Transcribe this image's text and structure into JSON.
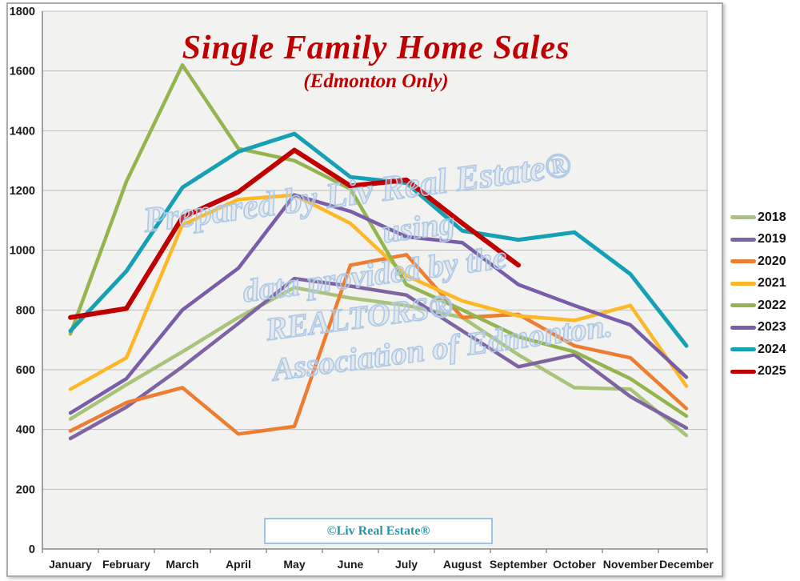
{
  "title": "Single Family Home Sales",
  "subtitle": "(Edmonton Only)",
  "title_color": "#C00000",
  "watermark_lines": [
    "Prepared by Liv Real Estate®",
    "using",
    "data provided by the",
    "REALTORS®",
    "Association of Edmonton."
  ],
  "footer_badge": "©Liv Real Estate®",
  "footer_color": "#2795A8",
  "colors": {
    "plot_bg": "#f2f2f1",
    "gridline": "#bdbdbd",
    "axis": "#8a8a8a",
    "tick_label": "#1a1a1a"
  },
  "chart_data": {
    "type": "line",
    "title": "Single Family Home Sales",
    "subtitle": "(Edmonton Only)",
    "categories": [
      "January",
      "February",
      "March",
      "April",
      "May",
      "June",
      "July",
      "August",
      "September",
      "October",
      "November",
      "December"
    ],
    "xlabel": "",
    "ylabel": "",
    "ylim": [
      0,
      1800
    ],
    "y_step": 200,
    "grid": true,
    "legend_position": "right",
    "series": [
      {
        "name": "2018",
        "color": "#A9C47A",
        "width": 4.5,
        "values": [
          435,
          550,
          660,
          775,
          875,
          840,
          815,
          775,
          650,
          540,
          535,
          380
        ]
      },
      {
        "name": "2019",
        "color": "#8064A2",
        "width": 4.5,
        "values": [
          370,
          475,
          610,
          755,
          905,
          880,
          850,
          730,
          610,
          650,
          510,
          405
        ]
      },
      {
        "name": "2020",
        "color": "#ED7D31",
        "width": 4.5,
        "values": [
          395,
          490,
          540,
          385,
          410,
          950,
          985,
          775,
          785,
          680,
          640,
          470
        ]
      },
      {
        "name": "2021",
        "color": "#FDB827",
        "width": 4.5,
        "values": [
          535,
          640,
          1085,
          1170,
          1185,
          1090,
          915,
          830,
          780,
          765,
          815,
          545
        ]
      },
      {
        "name": "2022",
        "color": "#94B44D",
        "width": 4.5,
        "values": [
          720,
          1230,
          1620,
          1340,
          1300,
          1205,
          885,
          800,
          710,
          660,
          570,
          445
        ]
      },
      {
        "name": "2023",
        "color": "#7A5DA8",
        "width": 4.5,
        "values": [
          455,
          570,
          800,
          940,
          1185,
          1130,
          1045,
          1025,
          885,
          815,
          750,
          575
        ]
      },
      {
        "name": "2024",
        "color": "#16A0B6",
        "width": 5,
        "values": [
          730,
          930,
          1210,
          1330,
          1390,
          1245,
          1225,
          1065,
          1035,
          1060,
          920,
          680
        ]
      },
      {
        "name": "2025",
        "color": "#C00000",
        "width": 6,
        "values": [
          775,
          805,
          1110,
          1195,
          1335,
          1215,
          1235,
          1090,
          950
        ]
      }
    ]
  }
}
